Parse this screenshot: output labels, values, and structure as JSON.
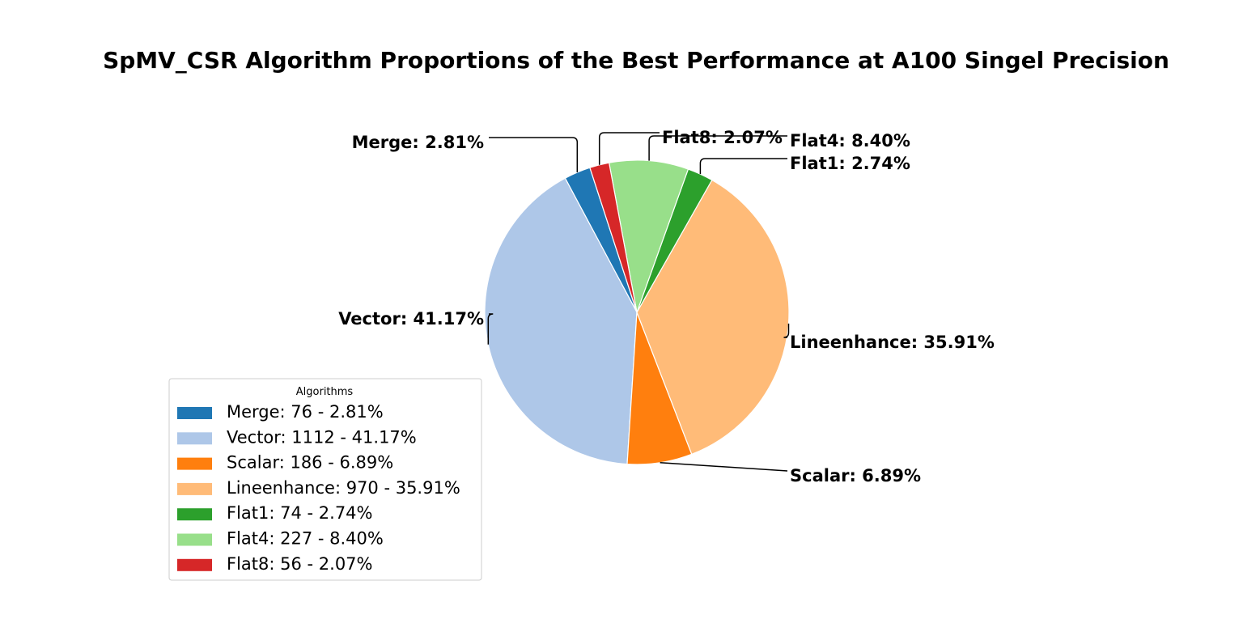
{
  "chart_data": {
    "type": "pie",
    "title": "SpMV_CSR Algorithm Proportions of the Best Performance at A100 Singel Precision",
    "legend": {
      "title": "Algorithms",
      "placement": "lower-left"
    },
    "slices": [
      {
        "label": "Merge",
        "count": 76,
        "percent": 2.81,
        "color": "#1f77b4",
        "callout": "Merge: 2.81%",
        "legend_text": "Merge: 76 - 2.81%"
      },
      {
        "label": "Vector",
        "count": 1112,
        "percent": 41.17,
        "color": "#aec7e8",
        "callout": "Vector: 41.17%",
        "legend_text": "Vector: 1112 - 41.17%"
      },
      {
        "label": "Scalar",
        "count": 186,
        "percent": 6.89,
        "color": "#ff7f0e",
        "callout": "Scalar: 6.89%",
        "legend_text": "Scalar: 186 - 6.89%"
      },
      {
        "label": "Lineenhance",
        "count": 970,
        "percent": 35.91,
        "color": "#ffbb78",
        "callout": "Lineenhance: 35.91%",
        "legend_text": "Lineenhance: 970 - 35.91%"
      },
      {
        "label": "Flat1",
        "count": 74,
        "percent": 2.74,
        "color": "#2ca02c",
        "callout": "Flat1: 2.74%",
        "legend_text": "Flat1: 74 - 2.74%"
      },
      {
        "label": "Flat4",
        "count": 227,
        "percent": 8.4,
        "color": "#98df8a",
        "callout": "Flat4: 8.40%",
        "legend_text": "Flat4: 227 - 8.40%"
      },
      {
        "label": "Flat8",
        "count": 56,
        "percent": 2.07,
        "color": "#d62728",
        "callout": "Flat8: 2.07%",
        "legend_text": "Flat8: 56 - 2.07%"
      }
    ]
  }
}
